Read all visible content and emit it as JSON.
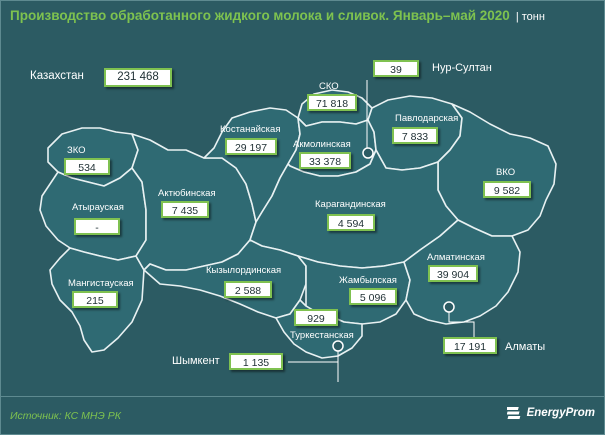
{
  "header": {
    "title": "Производство обработанного жидкого молока и сливок. Январь–май 2020",
    "unit": "| тонн"
  },
  "total": {
    "label": "Казахстан",
    "value": "231 468"
  },
  "regions": {
    "zko": {
      "label": "ЗКО",
      "value": "534"
    },
    "atyrau": {
      "label": "Атырауская",
      "value": "-"
    },
    "mangystau": {
      "label": "Мангистауская",
      "value": "215"
    },
    "aktobe": {
      "label": "Актюбинская",
      "value": "7 435"
    },
    "kostanay": {
      "label": "Костанайская",
      "value": "29 197"
    },
    "sko": {
      "label": "СКО",
      "value": "71 818"
    },
    "akmola": {
      "label": "Акмолинская",
      "value": "33 378"
    },
    "pavlodar": {
      "label": "Павлодарская",
      "value": "7 833"
    },
    "vko": {
      "label": "ВКО",
      "value": "9 582"
    },
    "karaganda": {
      "label": "Карагандинская",
      "value": "4 594"
    },
    "kyzylorda": {
      "label": "Кызылординская",
      "value": "2 588"
    },
    "zhambyl": {
      "label": "Жамбылская",
      "value": "5 096"
    },
    "almaty_obl": {
      "label": "Алматинская",
      "value": "39 904"
    },
    "turkestan": {
      "label": "Туркестанская",
      "value": "929"
    }
  },
  "cities": {
    "nursultan": {
      "label": "Нур-Султан",
      "value": "39"
    },
    "almaty": {
      "label": "Алматы",
      "value": "17 191"
    },
    "shymkent": {
      "label": "Шымкент",
      "value": "1 135"
    }
  },
  "footer": {
    "source": "Источник: КС МНЭ РК",
    "logo": "EnergyProm"
  },
  "colors": {
    "accent": "#7ec24f",
    "background": "#2c5b63",
    "region_fill": "#2f6a73",
    "border": "#e8f1f2"
  }
}
